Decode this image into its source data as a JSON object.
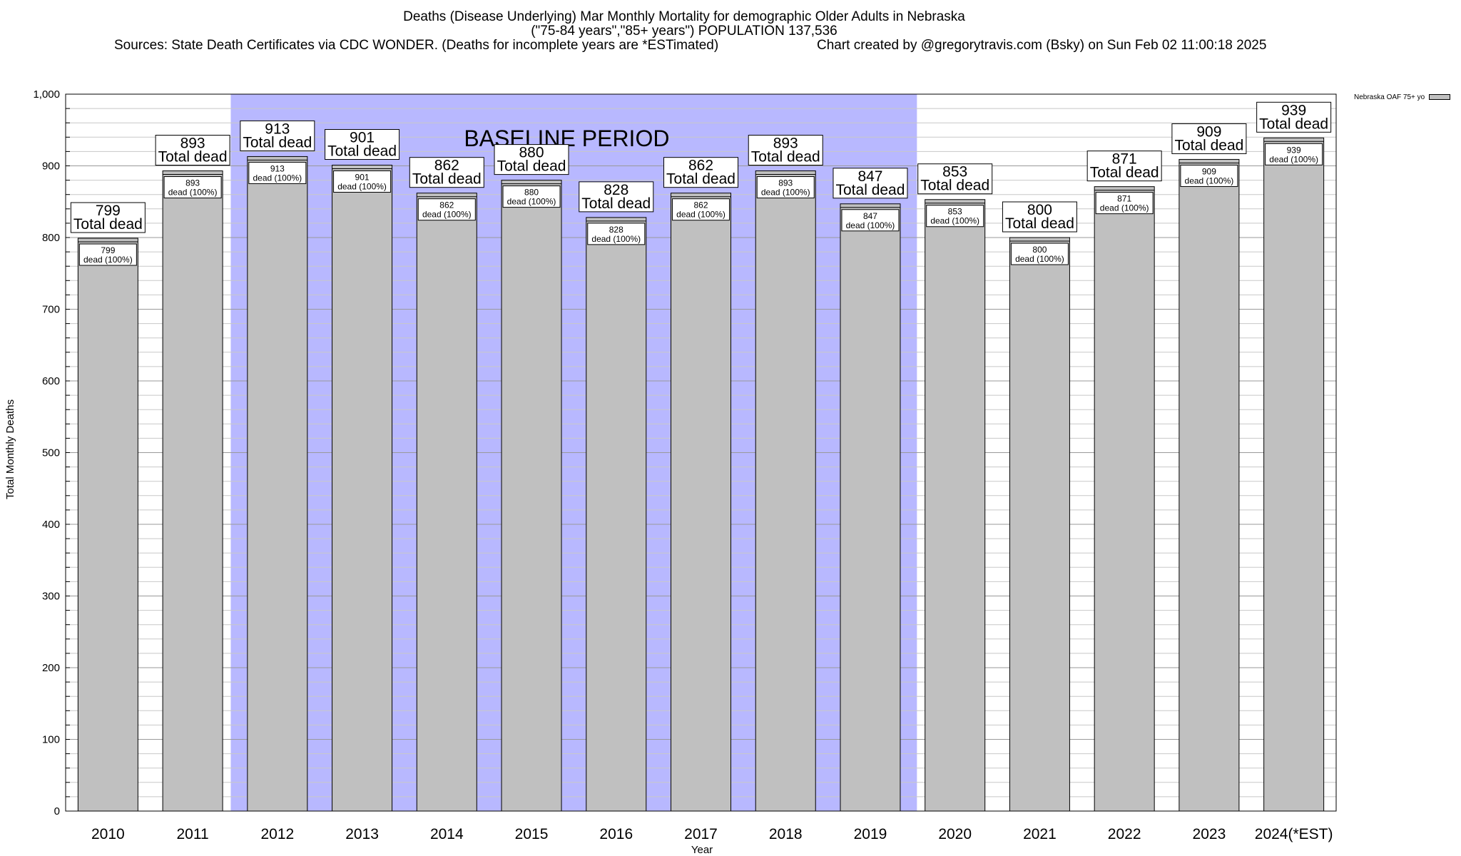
{
  "chart_data": {
    "type": "bar",
    "title_line1": "Deaths (Disease Underlying) Mar Monthly Mortality for demographic Older Adults in Nebraska",
    "title_line2": "(\"75-84 years\",\"85+ years\") POPULATION 137,536",
    "title_line3": "Sources: State Death Certificates via CDC WONDER. (Deaths for incomplete years are *ESTimated)",
    "credit": "Chart created by @gregorytravis.com (Bsky) on Sun Feb 02 11:00:18 2025",
    "xlabel": "Year",
    "ylabel": "Total Monthly Deaths",
    "categories": [
      "2010",
      "2011",
      "2012",
      "2013",
      "2014",
      "2015",
      "2016",
      "2017",
      "2018",
      "2019",
      "2020",
      "2021",
      "2022",
      "2023",
      "2024(*EST)"
    ],
    "values": [
      799,
      893,
      913,
      901,
      862,
      880,
      828,
      862,
      893,
      847,
      853,
      800,
      871,
      909,
      939
    ],
    "bar_label": "Total dead",
    "inner_label": "dead (100%)",
    "ylim": [
      0,
      1000
    ],
    "yticks": [
      "0",
      "100",
      "200",
      "300",
      "400",
      "500",
      "600",
      "700",
      "800",
      "900",
      "1,000"
    ],
    "baseline": {
      "label": "BASELINE PERIOD",
      "start": "2012",
      "end": "2019",
      "color": "#b8b8ff"
    },
    "legend": {
      "label": "Nebraska OAF 75+ yo",
      "placement": "top-right"
    },
    "bar_color": "#c0c0c0",
    "grid": true
  }
}
